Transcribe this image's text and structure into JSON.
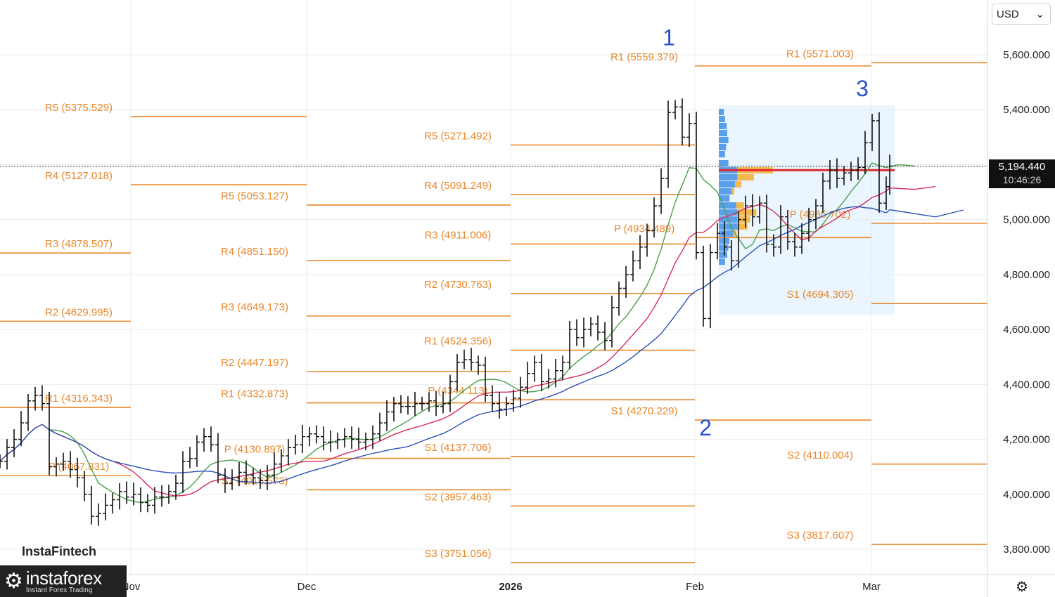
{
  "currency": "USD",
  "last_price": "5,194.440",
  "countdown": "10:46:26",
  "watermark": "InstaFintech",
  "brand": {
    "name": "instaforex",
    "tagline": "Instant Forex Trading"
  },
  "colors": {
    "pivot": "#e8872a",
    "bar": "#111111",
    "ma_fast": "#4aa04a",
    "ma_mid": "#d62b5c",
    "ma_slow": "#2c52b8",
    "poc": "#e0262a",
    "wave": "#2a52c9",
    "vp_box": "#dceefe"
  },
  "chart_data": {
    "type": "ohlc",
    "yticks": [
      "5,600.000",
      "5,400.000",
      "5,200.000",
      "5,000.000",
      "4,800.000",
      "4,600.000",
      "4,400.000",
      "4,200.000",
      "4,000.000",
      "3,800.000"
    ],
    "ytick_values": [
      5600,
      5400,
      5200,
      5000,
      4800,
      4600,
      4400,
      4200,
      4000,
      3800
    ],
    "ylim": [
      3735,
      5800
    ],
    "xticks": [
      "Nov",
      "Dec",
      "2026",
      "Feb",
      "Mar"
    ],
    "last_price": 5194.44,
    "pivot_levels": [
      {
        "label": "R1 (4316.343)",
        "value": 4316.343,
        "period": "Nov"
      },
      {
        "label": "P (4067.831)",
        "value": 4067.831,
        "period": "Nov"
      },
      {
        "label": "R2 (4629.995)",
        "value": 4629.995,
        "period": "Nov"
      },
      {
        "label": "R3 (4878.507)",
        "value": 4878.507,
        "period": "Nov"
      },
      {
        "label": "R4 (5127.018)",
        "value": 5127.018,
        "period": "Nov"
      },
      {
        "label": "R5 (5375.529)",
        "value": 5375.529,
        "period": "Nov"
      },
      {
        "label": "R5 (5053.127)",
        "value": 5053.127,
        "period": "Dec"
      },
      {
        "label": "R4 (4851.150)",
        "value": 4851.15,
        "period": "Dec"
      },
      {
        "label": "R3 (4649.173)",
        "value": 4649.173,
        "period": "Dec"
      },
      {
        "label": "R2 (4447.197)",
        "value": 4447.197,
        "period": "Dec"
      },
      {
        "label": "R1 (4332.873)",
        "value": 4332.873,
        "period": "Dec"
      },
      {
        "label": "P (4130.897)",
        "value": 4130.897,
        "period": "Dec"
      },
      {
        "label": "S1 (4016.573)",
        "value": 4016.573,
        "period": "Dec"
      },
      {
        "label": "R5 (5271.492)",
        "value": 5271.492,
        "period": "Jan"
      },
      {
        "label": "R4 (5091.249)",
        "value": 5091.249,
        "period": "Jan"
      },
      {
        "label": "R3 (4911.006)",
        "value": 4911.006,
        "period": "Jan"
      },
      {
        "label": "R2 (4730.763)",
        "value": 4730.763,
        "period": "Jan"
      },
      {
        "label": "R1 (4524.356)",
        "value": 4524.356,
        "period": "Jan"
      },
      {
        "label": "P (4344.113)",
        "value": 4344.113,
        "period": "Jan"
      },
      {
        "label": "S1 (4137.706)",
        "value": 4137.706,
        "period": "Jan"
      },
      {
        "label": "S2 (3957.463)",
        "value": 3957.463,
        "period": "Jan"
      },
      {
        "label": "S3 (3751.056)",
        "value": 3751.056,
        "period": "Jan"
      },
      {
        "label": "R1 (5559.379)",
        "value": 5559.379,
        "period": "Feb"
      },
      {
        "label": "P (4934.489)",
        "value": 4934.489,
        "period": "Feb"
      },
      {
        "label": "S1 (4270.229)",
        "value": 4270.229,
        "period": "Feb"
      },
      {
        "label": "R1 (5571.003)",
        "value": 5571.003,
        "period": "Mar"
      },
      {
        "label": "P (4986.702)",
        "value": 4986.702,
        "period": "Mar"
      },
      {
        "label": "S1 (4694.305)",
        "value": 4694.305,
        "period": "Mar"
      },
      {
        "label": "S2 (4110.004)",
        "value": 4110.004,
        "period": "Mar"
      },
      {
        "label": "S3 (3817.607)",
        "value": 3817.607,
        "period": "Mar"
      }
    ],
    "wave_labels": [
      {
        "label": "1",
        "value": 5665
      },
      {
        "label": "2",
        "value": 4245
      },
      {
        "label": "3",
        "value": 5480
      }
    ]
  }
}
